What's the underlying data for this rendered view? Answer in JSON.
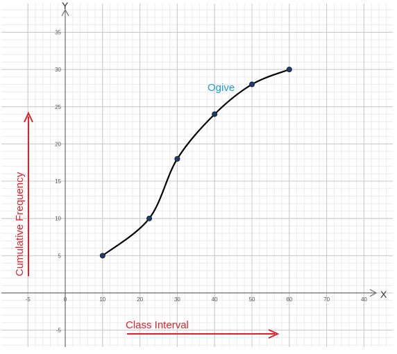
{
  "chart_data": {
    "type": "line",
    "x_axis_name": "X",
    "y_axis_name": "Y",
    "x_ticks": [
      "-5",
      "0",
      "10",
      "20",
      "30",
      "40",
      "50",
      "60",
      "70",
      "40"
    ],
    "y_ticks": [
      "-5",
      "5",
      "10",
      "15",
      "20",
      "25",
      "30",
      "35"
    ],
    "xlim": [
      -10,
      78
    ],
    "ylim": [
      -7,
      38
    ],
    "grid": true,
    "series": [
      {
        "points": [
          {
            "x": 10,
            "y": 5
          },
          {
            "x": 22.5,
            "y": 10
          },
          {
            "x": 30,
            "y": 18
          },
          {
            "x": 40,
            "y": 24
          },
          {
            "x": 50,
            "y": 28
          },
          {
            "x": 60,
            "y": 30
          }
        ]
      }
    ],
    "annotations": {
      "curve_label": "Ogive",
      "y_side_label": "Cumulative Frequency",
      "x_side_label": "Class Interval"
    },
    "colors": {
      "curve": "#000000",
      "points": "#1f3b66",
      "annotation": "#1e9bd7",
      "arrow_labels": "#e0202a",
      "grid_major": "#c8c8c8",
      "grid_minor": "#ececec"
    }
  }
}
